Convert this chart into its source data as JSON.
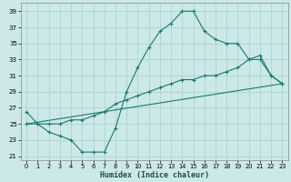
{
  "xlabel": "Humidex (Indice chaleur)",
  "bg_color": "#cce8e8",
  "grid_color": "#aad4d4",
  "line_color": "#1a7a6a",
  "ylim": [
    20.5,
    40
  ],
  "xlim": [
    -0.5,
    23.5
  ],
  "yticks": [
    21,
    23,
    25,
    27,
    29,
    31,
    33,
    35,
    37,
    39
  ],
  "xticks": [
    0,
    1,
    2,
    3,
    4,
    5,
    6,
    7,
    8,
    9,
    10,
    11,
    12,
    13,
    14,
    15,
    16,
    17,
    18,
    19,
    20,
    21,
    22,
    23
  ],
  "line1_x": [
    0,
    1,
    2,
    3,
    4,
    5,
    6,
    7,
    8,
    9,
    10,
    11,
    12,
    13,
    14,
    15,
    16,
    17,
    18,
    19,
    20,
    21,
    22,
    23
  ],
  "line1_y": [
    26.5,
    25.0,
    24.0,
    23.5,
    23.0,
    21.5,
    21.5,
    21.5,
    24.5,
    29.0,
    32.0,
    34.5,
    36.5,
    37.5,
    39.0,
    39.0,
    36.5,
    35.5,
    35.0,
    35.0,
    33.0,
    33.0,
    31.0,
    30.0
  ],
  "line2_x": [
    0,
    1,
    2,
    3,
    4,
    5,
    6,
    7,
    8,
    9,
    10,
    11,
    12,
    13,
    14,
    15,
    16,
    17,
    18,
    19,
    20,
    21,
    22,
    23
  ],
  "line2_y": [
    25.0,
    25.0,
    25.0,
    25.0,
    25.5,
    25.5,
    26.0,
    26.5,
    27.5,
    28.0,
    28.5,
    29.0,
    29.5,
    30.0,
    30.5,
    30.5,
    31.0,
    31.0,
    31.5,
    32.0,
    33.0,
    33.5,
    31.0,
    30.0
  ],
  "line3_x": [
    0,
    23
  ],
  "line3_y": [
    25.0,
    30.0
  ]
}
